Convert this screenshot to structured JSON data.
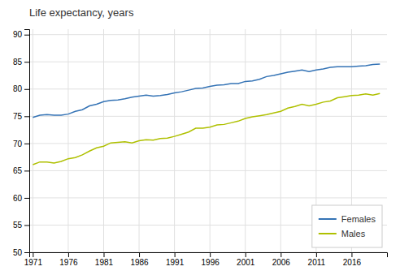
{
  "chart_data": {
    "type": "line",
    "title": "Life expectancy, years",
    "x": [
      1971,
      1972,
      1973,
      1974,
      1975,
      1976,
      1977,
      1978,
      1979,
      1980,
      1981,
      1982,
      1983,
      1984,
      1985,
      1986,
      1987,
      1988,
      1989,
      1990,
      1991,
      1992,
      1993,
      1994,
      1995,
      1996,
      1997,
      1998,
      1999,
      2000,
      2001,
      2002,
      2003,
      2004,
      2005,
      2006,
      2007,
      2008,
      2009,
      2010,
      2011,
      2012,
      2013,
      2014,
      2015,
      2016,
      2017,
      2018,
      2019,
      2020
    ],
    "series": [
      {
        "name": "Females",
        "color": "#3473b5",
        "values": [
          74.8,
          75.2,
          75.3,
          75.2,
          75.2,
          75.4,
          75.9,
          76.2,
          76.9,
          77.2,
          77.7,
          77.9,
          78.0,
          78.2,
          78.5,
          78.7,
          78.9,
          78.7,
          78.8,
          79.0,
          79.3,
          79.5,
          79.8,
          80.1,
          80.2,
          80.5,
          80.7,
          80.8,
          81.0,
          81.0,
          81.4,
          81.5,
          81.8,
          82.3,
          82.5,
          82.8,
          83.1,
          83.3,
          83.5,
          83.2,
          83.5,
          83.7,
          84.0,
          84.1,
          84.1,
          84.1,
          84.2,
          84.3,
          84.5,
          84.6
        ]
      },
      {
        "name": "Males",
        "color": "#afc000",
        "values": [
          66.1,
          66.6,
          66.6,
          66.4,
          66.7,
          67.2,
          67.4,
          67.9,
          68.6,
          69.2,
          69.5,
          70.1,
          70.2,
          70.3,
          70.1,
          70.5,
          70.7,
          70.6,
          70.9,
          71.0,
          71.3,
          71.7,
          72.1,
          72.8,
          72.8,
          73.0,
          73.4,
          73.5,
          73.8,
          74.1,
          74.6,
          74.9,
          75.1,
          75.3,
          75.6,
          75.9,
          76.5,
          76.8,
          77.2,
          76.9,
          77.2,
          77.6,
          77.8,
          78.4,
          78.6,
          78.8,
          78.9,
          79.1,
          78.9,
          79.2
        ]
      }
    ],
    "xlim": [
      1970.5,
      2021
    ],
    "ylim": [
      50,
      91
    ],
    "xticks": [
      1971,
      1976,
      1981,
      1986,
      1991,
      1996,
      2001,
      2006,
      2011,
      2016
    ],
    "yticks": [
      50,
      55,
      60,
      65,
      70,
      75,
      80,
      85,
      90
    ],
    "grid": true,
    "legend": "lower right"
  }
}
